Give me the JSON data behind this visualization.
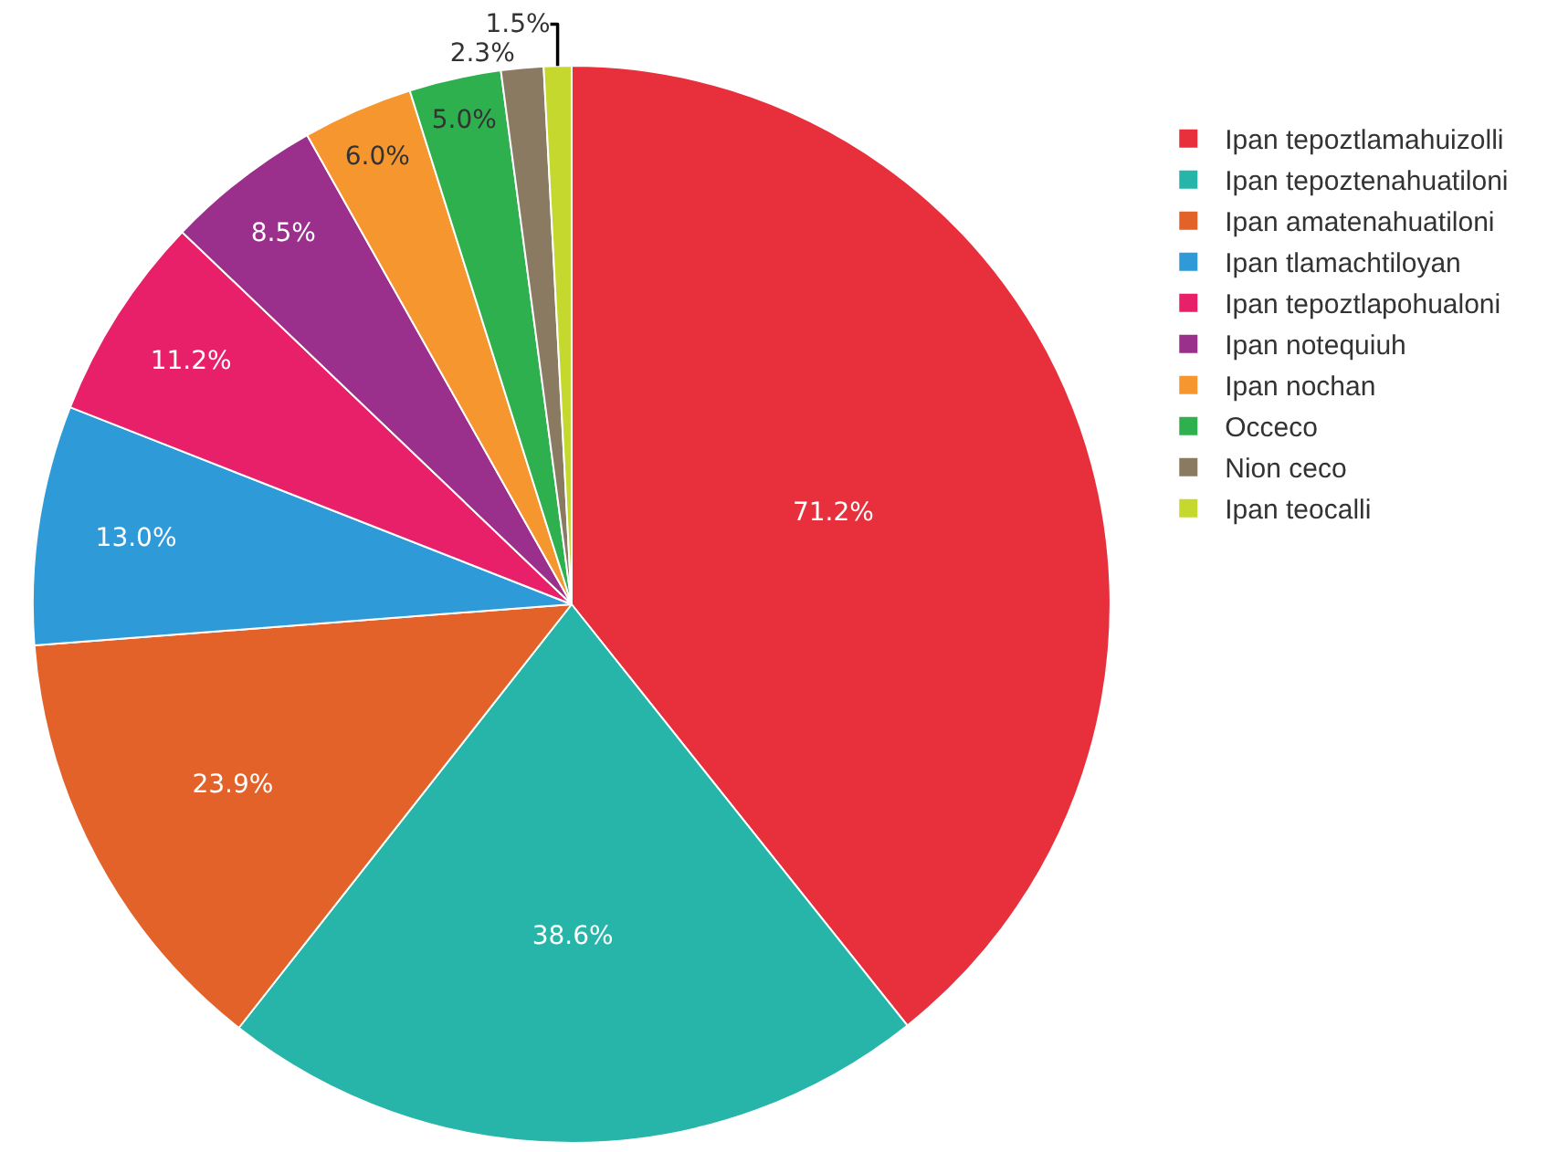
{
  "chart_data": {
    "type": "pie",
    "categories": [
      "Ipan tepoztlamahuizolli",
      "Ipan tepoztenahuatiloni",
      "Ipan amatenahuatiloni",
      "Ipan tlamachtiloyan",
      "Ipan tepoztlapohualoni",
      "Ipan notequiuh",
      "Ipan nochan",
      "Occeco",
      "Nion ceco",
      "Ipan teocalli"
    ],
    "values": [
      71.2,
      38.6,
      23.9,
      13.0,
      11.2,
      8.5,
      6.0,
      5.0,
      2.3,
      1.5
    ],
    "value_labels": [
      "71.2%",
      "38.6%",
      "23.9%",
      "13.0%",
      "11.2%",
      "8.5%",
      "6.0%",
      "5.0%",
      "2.3%",
      "1.5%"
    ],
    "colors": [
      "#e8303d",
      "#26b5a8",
      "#e2622a",
      "#2f9ad8",
      "#e8206a",
      "#9b2f8c",
      "#f5962f",
      "#2fb04e",
      "#8a7a62",
      "#c5d82e"
    ],
    "legend": "top right"
  }
}
